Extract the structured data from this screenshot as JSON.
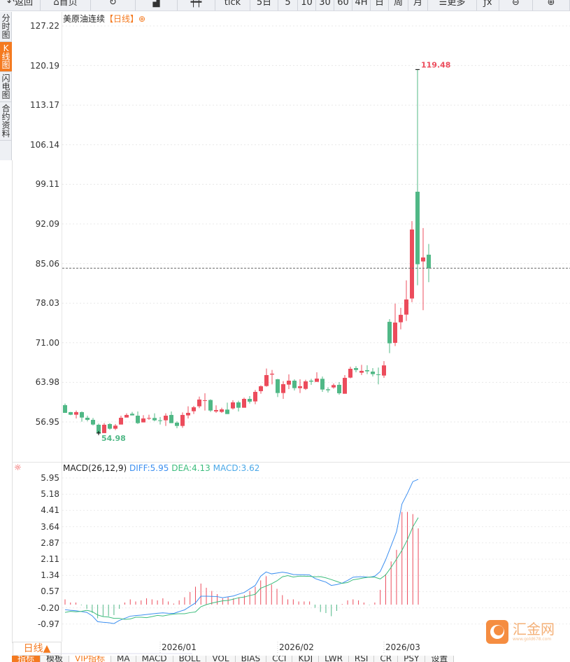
{
  "toolbar": {
    "items": [
      {
        "name": "back-button",
        "icon": "back-arrow-icon",
        "label": "返回",
        "w": 58
      },
      {
        "name": "home-button",
        "icon": "home-icon",
        "label": "首页",
        "w": 72
      },
      {
        "name": "refresh-button",
        "icon": "refresh-icon",
        "label": "",
        "w": 64
      },
      {
        "name": "indicator-button",
        "icon": "bar-chart-icon",
        "label": "",
        "w": 60
      },
      {
        "name": "candle-style-button",
        "icon": "candlestick-icon",
        "label": "",
        "w": 54
      },
      {
        "name": "period-tick",
        "label": "tick",
        "w": 50
      },
      {
        "name": "period-5day",
        "label": "5日",
        "w": 40
      },
      {
        "name": "period-5",
        "label": "5",
        "w": 28
      },
      {
        "name": "period-10",
        "label": "10",
        "w": 26
      },
      {
        "name": "period-30",
        "label": "30",
        "w": 26
      },
      {
        "name": "period-60",
        "label": "60",
        "w": 26
      },
      {
        "name": "period-4h",
        "label": "4H",
        "w": 26
      },
      {
        "name": "period-day",
        "label": "日",
        "w": 26
      },
      {
        "name": "period-week",
        "label": "周",
        "w": 28
      },
      {
        "name": "period-month",
        "label": "月",
        "w": 28
      },
      {
        "name": "more-button",
        "icon": "menu-icon",
        "label": "更多",
        "w": 70
      },
      {
        "name": "formula-button",
        "label": "ƒx",
        "w": 32
      },
      {
        "name": "zoom-out-button",
        "icon": "zoom-out-icon",
        "label": "⊖",
        "w": 48
      },
      {
        "name": "zoom-in-button",
        "icon": "zoom-in-icon",
        "label": "⊕",
        "w": 53
      }
    ]
  },
  "sidebar": [
    {
      "label": "分时图",
      "active": false
    },
    {
      "label": "K线图",
      "active": true
    },
    {
      "label": "闪电图",
      "active": false
    },
    {
      "label": "合约资料",
      "active": false
    }
  ],
  "title": {
    "name": "美原油连续",
    "period": "【日线】",
    "icon": "⊕"
  },
  "price_axis": [
    "127.22",
    "120.19",
    "113.17",
    "106.14",
    "99.11",
    "92.09",
    "85.06",
    "78.03",
    "71.00",
    "63.98",
    "56.95"
  ],
  "markers": {
    "high": "119.48",
    "low": "54.98",
    "last_price": 84.23
  },
  "colors": {
    "up": "#ec4c5c",
    "down": "#50b886",
    "diff": "#3c8ff0",
    "dea": "#3dbd7d",
    "accent": "#f47a20"
  },
  "macd": {
    "title": "MACD(26,12,9)",
    "diff_label": "DIFF:5.95",
    "dea_label": "DEA:4.13",
    "macd_label": "MACD:3.62",
    "axis": [
      "5.95",
      "5.18",
      "4.41",
      "3.64",
      "2.87",
      "2.11",
      "1.34",
      "0.57",
      "-0.20",
      "-0.97"
    ],
    "hist": [
      0.25,
      0.1,
      0.1,
      -0.03,
      -0.2,
      -0.4,
      -0.65,
      -0.55,
      -0.55,
      -0.5,
      -0.2,
      0.1,
      0.25,
      0.15,
      0.2,
      0.3,
      0.25,
      0.2,
      0.3,
      0.15,
      0.05,
      0.2,
      0.35,
      0.6,
      0.85,
      1.0,
      0.8,
      0.65,
      0.5,
      0.3,
      0.35,
      0.3,
      0.35,
      0.45,
      0.65,
      0.85,
      1.15,
      1.35,
      0.95,
      0.75,
      0.45,
      0.25,
      0.25,
      0.15,
      0.15,
      0.15,
      -0.15,
      -0.35,
      -0.4,
      -0.55,
      -0.3,
      0.03,
      0.2,
      0.25,
      0.2,
      0.1,
      -0.02,
      0.1,
      0.7,
      1.45,
      2.05,
      2.6,
      4.4,
      4.4,
      4.3,
      3.62
    ],
    "diff": [
      -0.24,
      -0.27,
      -0.29,
      -0.33,
      -0.37,
      -0.53,
      -0.81,
      -0.84,
      -0.86,
      -0.9,
      -0.75,
      -0.65,
      -0.55,
      -0.52,
      -0.5,
      -0.47,
      -0.44,
      -0.41,
      -0.39,
      -0.41,
      -0.42,
      -0.33,
      -0.25,
      -0.08,
      0.08,
      0.4,
      0.4,
      0.39,
      0.38,
      0.33,
      0.37,
      0.41,
      0.5,
      0.58,
      0.75,
      0.91,
      1.35,
      1.55,
      1.46,
      1.5,
      1.54,
      1.5,
      1.43,
      1.42,
      1.42,
      1.41,
      1.24,
      1.15,
      1.07,
      0.91,
      0.95,
      1.02,
      1.15,
      1.3,
      1.32,
      1.32,
      1.3,
      1.35,
      1.57,
      2.13,
      2.79,
      3.46,
      4.78,
      5.28,
      5.84,
      5.95
    ],
    "dea": [
      -0.37,
      -0.32,
      -0.34,
      -0.32,
      -0.27,
      -0.33,
      -0.49,
      -0.57,
      -0.59,
      -0.65,
      -0.65,
      -0.7,
      -0.68,
      -0.6,
      -0.6,
      -0.62,
      -0.57,
      -0.51,
      -0.54,
      -0.49,
      -0.45,
      -0.43,
      -0.43,
      -0.38,
      -0.35,
      -0.1,
      0.0,
      0.07,
      0.13,
      0.18,
      0.2,
      0.26,
      0.33,
      0.36,
      0.43,
      0.49,
      0.78,
      0.88,
      0.99,
      1.13,
      1.32,
      1.38,
      1.31,
      1.35,
      1.35,
      1.34,
      1.32,
      1.33,
      1.27,
      1.19,
      1.1,
      1.01,
      1.05,
      1.18,
      1.22,
      1.27,
      1.31,
      1.3,
      1.22,
      1.41,
      1.77,
      2.16,
      2.58,
      3.08,
      3.69,
      4.13
    ]
  },
  "chart_data": {
    "type": "candlestick",
    "title": "美原油连续 日线",
    "ylim": [
      54.98,
      127.22
    ],
    "fields": [
      "open",
      "close",
      "low",
      "high"
    ],
    "candles": [
      [
        59.94,
        58.57,
        58.57,
        60.23
      ],
      [
        58.7,
        58.24,
        58.16,
        58.74
      ],
      [
        58.24,
        58.7,
        57.58,
        58.98
      ],
      [
        58.7,
        57.74,
        57.0,
        58.82
      ],
      [
        57.7,
        57.33,
        57.08,
        58.07
      ],
      [
        57.33,
        56.5,
        56.34,
        57.66
      ],
      [
        56.46,
        55.01,
        54.98,
        56.67
      ],
      [
        54.98,
        56.46,
        54.98,
        56.75
      ],
      [
        56.59,
        55.76,
        55.59,
        56.75
      ],
      [
        55.76,
        56.3,
        55.51,
        56.59
      ],
      [
        56.5,
        57.7,
        56.5,
        58.07
      ],
      [
        57.74,
        58.2,
        57.74,
        58.49
      ],
      [
        58.41,
        58.12,
        58.12,
        58.74
      ],
      [
        58.07,
        56.75,
        56.59,
        58.82
      ],
      [
        56.88,
        57.58,
        56.88,
        58.16
      ],
      [
        57.58,
        57.66,
        57.33,
        58.24
      ],
      [
        57.66,
        57.25,
        57.08,
        58.49
      ],
      [
        57.25,
        57.21,
        56.5,
        57.83
      ],
      [
        57.25,
        58.07,
        56.25,
        58.49
      ],
      [
        58.2,
        56.75,
        56.75,
        58.82
      ],
      [
        56.83,
        56.25,
        55.84,
        57.08
      ],
      [
        56.25,
        58.2,
        55.92,
        58.65
      ],
      [
        58.12,
        58.57,
        57.58,
        59.73
      ],
      [
        58.86,
        59.56,
        58.36,
        59.81
      ],
      [
        59.73,
        60.93,
        59.4,
        61.46
      ],
      [
        60.76,
        60.81,
        58.98,
        62.05
      ],
      [
        60.85,
        58.98,
        58.74,
        60.97
      ],
      [
        58.82,
        59.07,
        58.57,
        59.9
      ],
      [
        58.74,
        59.19,
        58.57,
        59.48
      ],
      [
        59.15,
        58.36,
        58.36,
        60.39
      ],
      [
        59.36,
        60.43,
        59.15,
        60.81
      ],
      [
        60.43,
        59.48,
        58.82,
        60.72
      ],
      [
        59.48,
        61.05,
        59.48,
        61.26
      ],
      [
        61.05,
        60.56,
        60.23,
        61.55
      ],
      [
        60.6,
        62.29,
        60.1,
        62.63
      ],
      [
        62.42,
        63.29,
        61.96,
        63.45
      ],
      [
        63.33,
        65.27,
        63.2,
        66.43
      ],
      [
        65.36,
        65.52,
        63.62,
        66.18
      ],
      [
        64.53,
        62.09,
        61.38,
        64.61
      ],
      [
        62.09,
        63.66,
        61.05,
        64.2
      ],
      [
        63.58,
        64.28,
        62.79,
        65.4
      ],
      [
        64.28,
        62.96,
        62.54,
        64.53
      ],
      [
        62.96,
        63.29,
        62.09,
        64.53
      ],
      [
        62.83,
        64.16,
        62.63,
        64.45
      ],
      [
        64.28,
        64.11,
        63.54,
        64.61
      ],
      [
        64.07,
        64.65,
        64.07,
        65.77
      ],
      [
        64.61,
        62.71,
        62.29,
        65.02
      ],
      [
        62.75,
        62.58,
        62.17,
        63.12
      ],
      [
        63.08,
        63.49,
        62.87,
        63.78
      ],
      [
        63.54,
        62.05,
        61.8,
        64.03
      ],
      [
        61.96,
        64.78,
        61.96,
        65.27
      ],
      [
        64.82,
        66.39,
        64.69,
        66.76
      ],
      [
        66.51,
        66.18,
        65.77,
        66.85
      ],
      [
        65.69,
        66.02,
        65.27,
        67.09
      ],
      [
        66.14,
        65.94,
        65.44,
        67.01
      ],
      [
        65.89,
        65.44,
        65.02,
        66.51
      ],
      [
        65.4,
        65.36,
        63.62,
        66.6
      ],
      [
        65.19,
        66.99,
        64.78,
        67.76
      ],
      [
        74.72,
        70.91,
        69.17,
        75.21
      ],
      [
        70.99,
        74.59,
        70.42,
        77.95
      ],
      [
        74.64,
        75.96,
        73.39,
        77.2
      ],
      [
        76.0,
        78.69,
        74.88,
        82.08
      ],
      [
        78.86,
        91.1,
        78.19,
        92.59
      ],
      [
        97.8,
        84.94,
        81.21,
        119.48
      ],
      [
        85.43,
        86.14,
        76.79,
        91.35
      ],
      [
        86.63,
        84.23,
        81.75,
        88.54
      ]
    ],
    "x_labels": [
      {
        "label": "2026/01",
        "index": 18
      },
      {
        "label": "2026/02",
        "index": 39
      },
      {
        "label": "2026/03",
        "index": 58
      }
    ]
  },
  "footer": {
    "period": "日线▲",
    "tabs": [
      {
        "label": "指标",
        "active": true
      },
      {
        "label": "模板"
      },
      {
        "label": "VIP指标",
        "vip": true
      },
      {
        "label": "MA"
      },
      {
        "label": "MACD"
      },
      {
        "label": "BOLL"
      },
      {
        "label": "VOL"
      },
      {
        "label": "BIAS"
      },
      {
        "label": "CCI"
      },
      {
        "label": "KDJ"
      },
      {
        "label": "LWR"
      },
      {
        "label": "RSI"
      },
      {
        "label": "CR"
      },
      {
        "label": "PSY"
      },
      {
        "label": "设置"
      }
    ]
  },
  "logo": {
    "text": "汇金网",
    "sub": "www.gold678.com"
  }
}
